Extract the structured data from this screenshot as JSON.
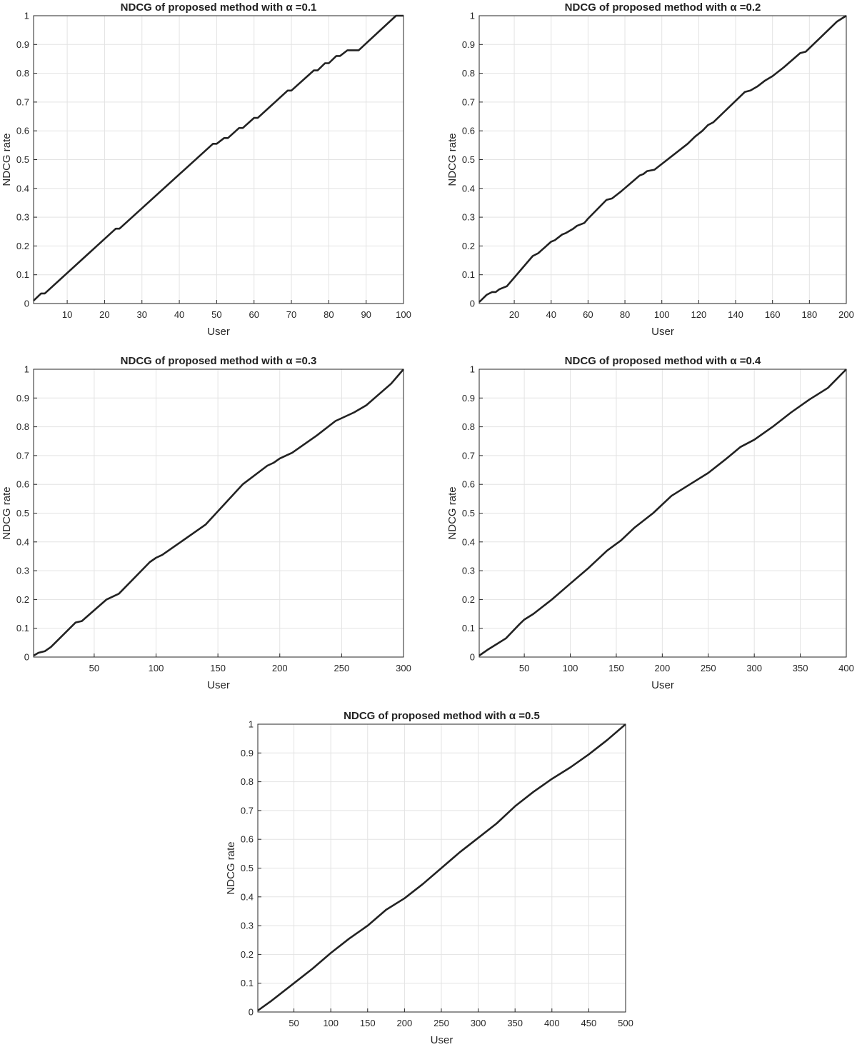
{
  "chart_data": [
    {
      "type": "line",
      "title": "NDCG of proposed method with α =0.1",
      "xlabel": "User",
      "ylabel": "NDCG rate",
      "xlim": [
        1,
        100
      ],
      "ylim": [
        0,
        1
      ],
      "xticks": [
        10,
        20,
        30,
        40,
        50,
        60,
        70,
        80,
        90,
        100
      ],
      "yticks": [
        0,
        0.1,
        0.2,
        0.3,
        0.4,
        0.5,
        0.6,
        0.7,
        0.8,
        0.9,
        1
      ],
      "grid": true,
      "x": [
        1,
        3,
        4,
        23,
        24,
        49,
        50,
        52,
        53,
        56,
        57,
        60,
        61,
        69,
        70,
        76,
        77,
        79,
        80,
        82,
        83,
        85,
        86,
        88,
        98,
        100
      ],
      "y": [
        0.01,
        0.035,
        0.035,
        0.26,
        0.26,
        0.555,
        0.555,
        0.575,
        0.575,
        0.61,
        0.61,
        0.645,
        0.645,
        0.74,
        0.74,
        0.81,
        0.81,
        0.835,
        0.835,
        0.86,
        0.86,
        0.88,
        0.88,
        0.88,
        1.0,
        1.0
      ]
    },
    {
      "type": "line",
      "title": "NDCG of proposed method with α =0.2",
      "xlabel": "User",
      "ylabel": "NDCG rate",
      "xlim": [
        1,
        200
      ],
      "ylim": [
        0,
        1
      ],
      "xticks": [
        20,
        40,
        60,
        80,
        100,
        120,
        140,
        160,
        180,
        200
      ],
      "yticks": [
        0,
        0.1,
        0.2,
        0.3,
        0.4,
        0.5,
        0.6,
        0.7,
        0.8,
        0.9,
        1
      ],
      "grid": true,
      "x": [
        1,
        5,
        8,
        10,
        12,
        14,
        16,
        30,
        33,
        40,
        42,
        46,
        48,
        52,
        54,
        58,
        60,
        70,
        73,
        76,
        78,
        88,
        90,
        92,
        96,
        114,
        118,
        122,
        125,
        128,
        145,
        148,
        152,
        156,
        160,
        166,
        175,
        178,
        195,
        200
      ],
      "y": [
        0.005,
        0.03,
        0.04,
        0.04,
        0.05,
        0.055,
        0.06,
        0.165,
        0.175,
        0.215,
        0.22,
        0.24,
        0.245,
        0.26,
        0.27,
        0.28,
        0.295,
        0.36,
        0.365,
        0.38,
        0.39,
        0.445,
        0.45,
        0.46,
        0.465,
        0.555,
        0.58,
        0.6,
        0.62,
        0.63,
        0.735,
        0.74,
        0.755,
        0.775,
        0.79,
        0.82,
        0.87,
        0.875,
        0.98,
        1.0
      ]
    },
    {
      "type": "line",
      "title": "NDCG of proposed method with α =0.3",
      "xlabel": "User",
      "ylabel": "NDCG rate",
      "xlim": [
        1,
        300
      ],
      "ylim": [
        0,
        1
      ],
      "xticks": [
        50,
        100,
        150,
        200,
        250,
        300
      ],
      "yticks": [
        0,
        0.1,
        0.2,
        0.3,
        0.4,
        0.5,
        0.6,
        0.7,
        0.8,
        0.9,
        1
      ],
      "grid": true,
      "x": [
        1,
        5,
        10,
        15,
        35,
        40,
        60,
        70,
        95,
        100,
        105,
        110,
        120,
        130,
        140,
        170,
        190,
        195,
        200,
        210,
        230,
        245,
        250,
        260,
        270,
        290,
        300
      ],
      "y": [
        0.005,
        0.015,
        0.02,
        0.035,
        0.12,
        0.125,
        0.2,
        0.22,
        0.33,
        0.345,
        0.355,
        0.37,
        0.4,
        0.43,
        0.46,
        0.6,
        0.665,
        0.675,
        0.69,
        0.71,
        0.77,
        0.82,
        0.83,
        0.85,
        0.875,
        0.95,
        1.0
      ]
    },
    {
      "type": "line",
      "title": "NDCG of proposed method with α =0.4",
      "xlabel": "User",
      "ylabel": "NDCG rate",
      "xlim": [
        1,
        400
      ],
      "ylim": [
        0,
        1
      ],
      "xticks": [
        50,
        100,
        150,
        200,
        250,
        300,
        350,
        400
      ],
      "yticks": [
        0,
        0.1,
        0.2,
        0.3,
        0.4,
        0.5,
        0.6,
        0.7,
        0.8,
        0.9,
        1
      ],
      "grid": true,
      "x": [
        1,
        10,
        20,
        30,
        45,
        50,
        60,
        80,
        100,
        120,
        140,
        155,
        170,
        190,
        210,
        230,
        250,
        270,
        285,
        300,
        320,
        340,
        360,
        380,
        400
      ],
      "y": [
        0.005,
        0.025,
        0.045,
        0.065,
        0.115,
        0.13,
        0.15,
        0.2,
        0.255,
        0.31,
        0.37,
        0.405,
        0.45,
        0.5,
        0.56,
        0.6,
        0.64,
        0.69,
        0.73,
        0.755,
        0.8,
        0.85,
        0.895,
        0.935,
        1.0
      ]
    },
    {
      "type": "line",
      "title": "NDCG of proposed method with α =0.5",
      "xlabel": "User",
      "ylabel": "NDCG rate",
      "xlim": [
        1,
        500
      ],
      "ylim": [
        0,
        1
      ],
      "xticks": [
        50,
        100,
        150,
        200,
        250,
        300,
        350,
        400,
        450,
        500
      ],
      "yticks": [
        0,
        0.1,
        0.2,
        0.3,
        0.4,
        0.5,
        0.6,
        0.7,
        0.8,
        0.9,
        1
      ],
      "grid": true,
      "x": [
        1,
        20,
        50,
        75,
        100,
        125,
        150,
        175,
        200,
        225,
        250,
        275,
        300,
        325,
        350,
        375,
        400,
        425,
        450,
        475,
        500
      ],
      "y": [
        0.005,
        0.04,
        0.1,
        0.15,
        0.205,
        0.255,
        0.3,
        0.355,
        0.395,
        0.445,
        0.5,
        0.555,
        0.605,
        0.655,
        0.715,
        0.765,
        0.81,
        0.85,
        0.895,
        0.945,
        1.0
      ]
    }
  ]
}
